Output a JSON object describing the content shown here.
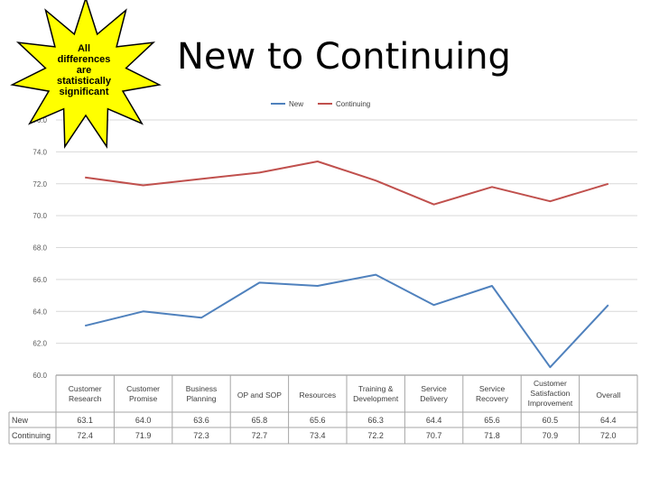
{
  "title": "New to Continuing",
  "callout_lines": [
    "All",
    "differences",
    "are",
    "statistically",
    "significant"
  ],
  "chart_data": {
    "type": "line",
    "categories": [
      [
        "Customer",
        "Research"
      ],
      [
        "Customer",
        "Promise"
      ],
      [
        "Business",
        "Planning"
      ],
      [
        "OP and SOP"
      ],
      [
        "Resources"
      ],
      [
        "Training &",
        "Development"
      ],
      [
        "Service",
        "Delivery"
      ],
      [
        "Service",
        "Recovery"
      ],
      [
        "Customer",
        "Satisfaction",
        "Improvement"
      ],
      [
        "Overall"
      ]
    ],
    "series": [
      {
        "name": "New",
        "color": "#4F81BD",
        "values": [
          63.1,
          64.0,
          63.6,
          65.8,
          65.6,
          66.3,
          64.4,
          65.6,
          60.5,
          64.4
        ]
      },
      {
        "name": "Continuing",
        "color": "#C0504D",
        "values": [
          72.4,
          71.9,
          72.3,
          72.7,
          73.4,
          72.2,
          70.7,
          71.8,
          70.9,
          72.0
        ]
      }
    ],
    "yticks": [
      "60.0",
      "62.0",
      "64.0",
      "66.0",
      "68.0",
      "70.0",
      "72.0",
      "74.0",
      "76.0"
    ],
    "ylim": [
      60,
      76
    ],
    "legend_position": "top",
    "grid": true,
    "table_rows": [
      {
        "label": "New",
        "cells": [
          "63.1",
          "64.0",
          "63.6",
          "65.8",
          "65.6",
          "66.3",
          "64.4",
          "65.6",
          "60.5",
          "64.4"
        ]
      },
      {
        "label": "Continuing",
        "cells": [
          "72.4",
          "71.9",
          "72.3",
          "72.7",
          "73.4",
          "72.2",
          "70.7",
          "71.8",
          "70.9",
          "72.0"
        ]
      }
    ]
  }
}
